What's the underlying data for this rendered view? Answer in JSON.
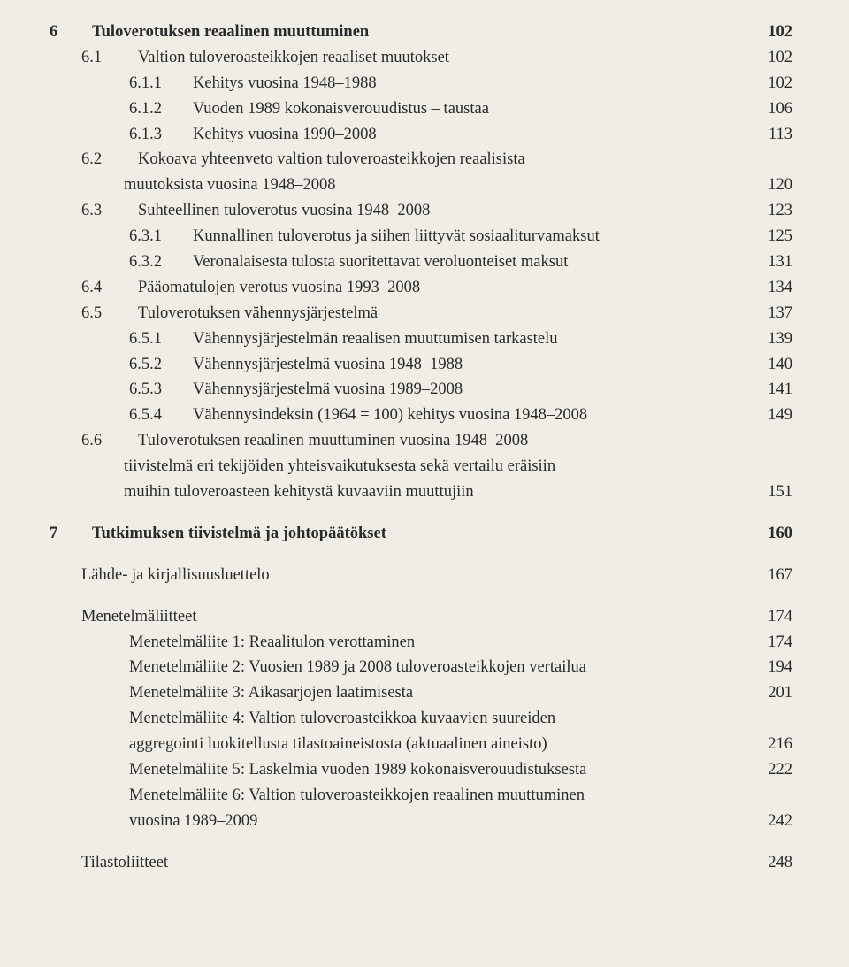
{
  "toc": {
    "chap6": {
      "num": "6",
      "title": "Tuloverotuksen reaalinen muuttuminen",
      "page": "102",
      "items": [
        {
          "num": "6.1",
          "title": "Valtion tuloveroasteikkojen reaaliset muutokset",
          "page": "102",
          "level": 2
        },
        {
          "num": "6.1.1",
          "title": "Kehitys vuosina 1948–1988",
          "page": "102",
          "level": 3
        },
        {
          "num": "6.1.2",
          "title": "Vuoden 1989 kokonaisverouudistus – taustaa",
          "page": "106",
          "level": 3
        },
        {
          "num": "6.1.3",
          "title": "Kehitys vuosina 1990–2008",
          "page": "113",
          "level": 3
        },
        {
          "num": "6.2",
          "title": "Kokoava yhteenveto valtion tuloveroasteikkojen reaalisista",
          "page": "",
          "level": 2
        },
        {
          "num": "",
          "title": "muutoksista vuosina 1948–2008",
          "page": "120",
          "level": "cont2"
        },
        {
          "num": "6.3",
          "title": "Suhteellinen tuloverotus vuosina 1948–2008",
          "page": "123",
          "level": 2
        },
        {
          "num": "6.3.1",
          "title": "Kunnallinen tuloverotus ja siihen liittyvät sosiaaliturvamaksut",
          "page": "125",
          "level": 3
        },
        {
          "num": "6.3.2",
          "title": "Veronalaisesta tulosta suoritettavat veroluonteiset maksut",
          "page": "131",
          "level": 3
        },
        {
          "num": "6.4",
          "title": "Pääomatulojen verotus vuosina 1993–2008",
          "page": "134",
          "level": 2
        },
        {
          "num": "6.5",
          "title": "Tuloverotuksen vähennysjärjestelmä",
          "page": "137",
          "level": 2
        },
        {
          "num": "6.5.1",
          "title": "Vähennysjärjestelmän reaalisen muuttumisen tarkastelu",
          "page": "139",
          "level": 3
        },
        {
          "num": "6.5.2",
          "title": "Vähennysjärjestelmä vuosina 1948–1988",
          "page": "140",
          "level": 3
        },
        {
          "num": "6.5.3",
          "title": "Vähennysjärjestelmä vuosina 1989–2008",
          "page": "141",
          "level": 3
        },
        {
          "num": "6.5.4",
          "title": "Vähennysindeksin (1964 = 100) kehitys vuosina 1948–2008",
          "page": "149",
          "level": 3
        },
        {
          "num": "6.6",
          "title": "Tuloverotuksen reaalinen muuttuminen vuosina 1948–2008 –",
          "page": "",
          "level": 2
        },
        {
          "num": "",
          "title": "tiivistelmä eri tekijöiden yhteisvaikutuksesta sekä vertailu eräisiin",
          "page": "",
          "level": "cont2"
        },
        {
          "num": "",
          "title": "muihin tuloveroasteen kehitystä kuvaaviin muuttujiin",
          "page": "151",
          "level": "cont2"
        }
      ]
    },
    "chap7": {
      "num": "7",
      "title": "Tutkimuksen tiivistelmä ja johtopäätökset",
      "page": "160"
    },
    "sources": {
      "title": "Lähde- ja kirjallisuusluettelo",
      "page": "167"
    },
    "method_appendix": {
      "header": {
        "title": "Menetelmäliitteet",
        "page": "174"
      },
      "items": [
        {
          "title": "Menetelmäliite 1: Reaalitulon verottaminen",
          "page": "174"
        },
        {
          "title": "Menetelmäliite 2: Vuosien 1989 ja 2008 tuloveroasteikkojen vertailua",
          "page": "194"
        },
        {
          "title": "Menetelmäliite 3: Aikasarjojen laatimisesta",
          "page": "201"
        },
        {
          "title": "Menetelmäliite 4: Valtion tuloveroasteikkoa kuvaavien suureiden",
          "page": ""
        },
        {
          "title": "aggregointi luokitellusta tilastoaineistosta (aktuaalinen aineisto)",
          "page": "216",
          "cont": true
        },
        {
          "title": "Menetelmäliite 5: Laskelmia vuoden 1989 kokonaisverouudistuksesta",
          "page": "222"
        },
        {
          "title": "Menetelmäliite 6: Valtion tuloveroasteikkojen reaalinen muuttuminen",
          "page": ""
        },
        {
          "title": "vuosina 1989–2009",
          "page": "242",
          "cont": true
        }
      ]
    },
    "stat_appendix": {
      "title": "Tilastoliitteet",
      "page": "248"
    }
  }
}
